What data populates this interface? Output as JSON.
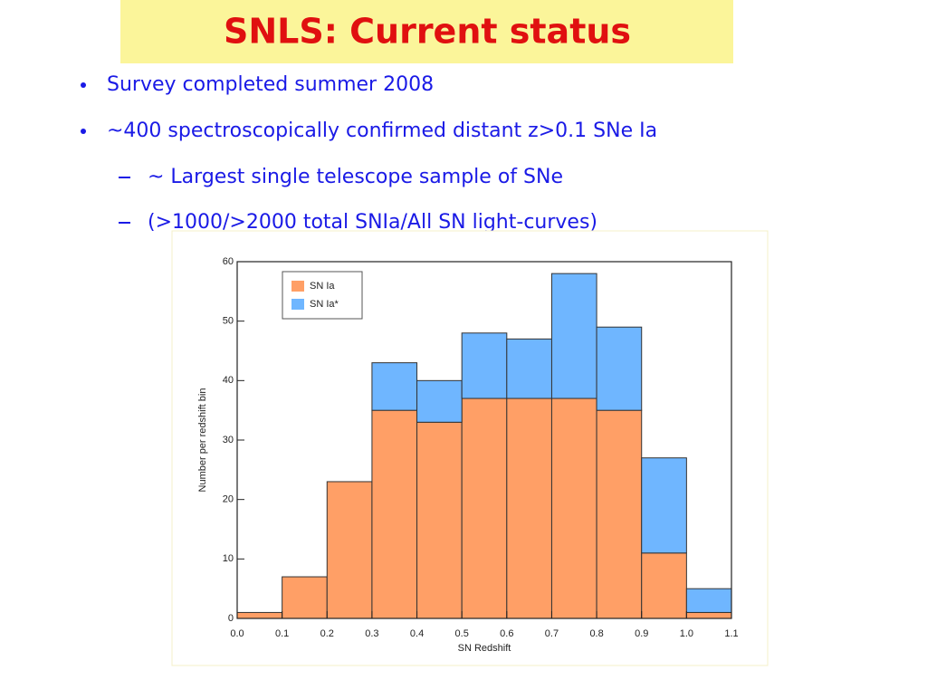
{
  "header": {
    "title": "SNLS: Current status"
  },
  "bullets": [
    "Survey completed summer 2008",
    "~400 spectroscopically  confirmed distant z>0.1 SNe Ia"
  ],
  "sub_bullets": [
    "~ Largest single telescope sample of SNe",
    "(>1000/>2000 total SNIa/All SN light-curves)"
  ],
  "chart_data": {
    "type": "histogram",
    "stacked": true,
    "xlabel": "SN Redshift",
    "ylabel": "Number per redshift bin",
    "bins": [
      0,
      0.1,
      0.2,
      0.3,
      0.4,
      0.5,
      0.6,
      0.7,
      0.8,
      0.9,
      1.0,
      1.1
    ],
    "series": [
      {
        "name": "SN Ia",
        "color": "#ff9f66",
        "values": [
          1,
          7,
          23,
          35,
          33,
          37,
          37,
          37,
          35,
          11,
          1
        ]
      },
      {
        "name": "SN Ia*",
        "color": "#6fb6ff",
        "values": [
          0,
          0,
          0,
          8,
          7,
          11,
          10,
          21,
          14,
          16,
          4
        ]
      }
    ],
    "xlim": [
      0,
      1.1
    ],
    "ylim": [
      0,
      60
    ],
    "xticks": [
      {
        "value": 0,
        "label": "0.0"
      },
      0.1,
      0.2,
      0.3,
      0.4,
      0.5,
      0.6,
      0.7,
      0.8,
      0.9,
      {
        "value": 1,
        "label": "1.0"
      },
      1.1
    ],
    "yticks": [
      0,
      10,
      20,
      30,
      40,
      50,
      60
    ],
    "legend": "upper left"
  }
}
